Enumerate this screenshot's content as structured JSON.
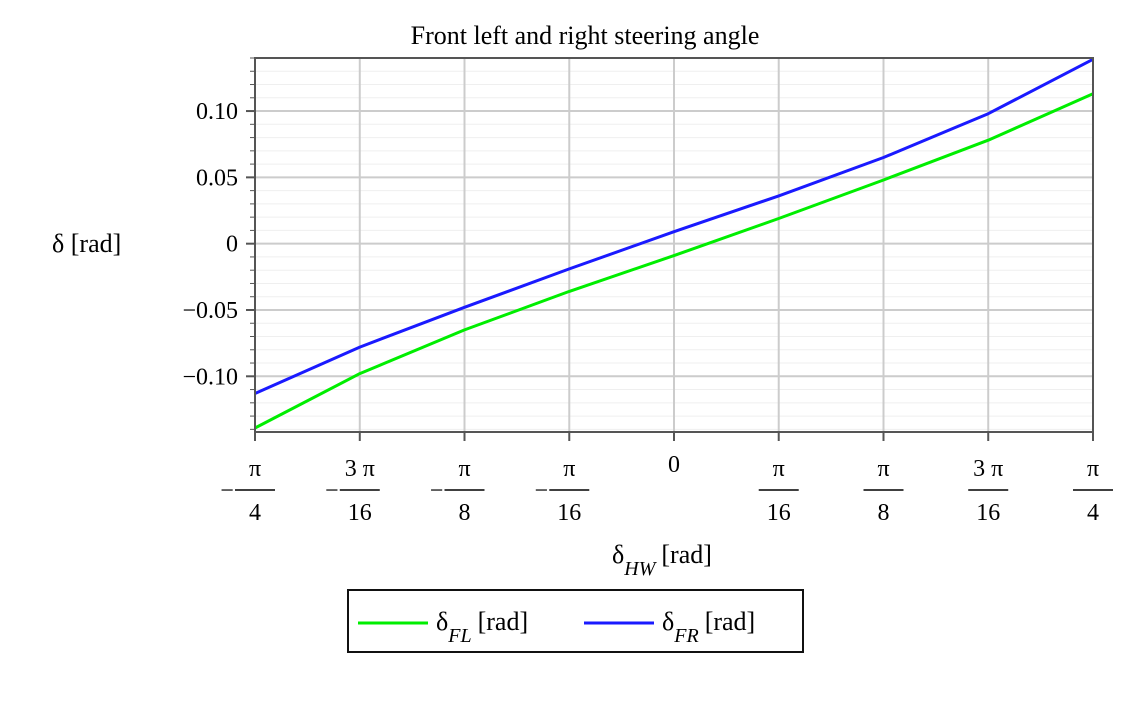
{
  "chart_data": {
    "type": "line",
    "title": "Front left and right steering angle",
    "xlabel": {
      "symbol": "δ",
      "sub": "HW",
      "unit": "[rad]"
    },
    "ylabel": "δ [rad]",
    "xlim": [
      -0.7854,
      0.7854
    ],
    "ylim": [
      -0.142,
      0.14
    ],
    "grid": true,
    "legend_position": "bottom",
    "y_ticks": [
      {
        "value": -0.1,
        "label": "−0.10"
      },
      {
        "value": -0.05,
        "label": "−0.05"
      },
      {
        "value": 0,
        "label": "0"
      },
      {
        "value": 0.05,
        "label": "0.05"
      },
      {
        "value": 0.1,
        "label": "0.10"
      }
    ],
    "x_ticks": [
      {
        "value": -0.7854,
        "sign": "−",
        "num": "π",
        "den": "4"
      },
      {
        "value": -0.589,
        "sign": "−",
        "num": "3 π",
        "den": "16"
      },
      {
        "value": -0.3927,
        "sign": "−",
        "num": "π",
        "den": "8"
      },
      {
        "value": -0.1963,
        "sign": "−",
        "num": "π",
        "den": "16"
      },
      {
        "value": 0,
        "plain": "0"
      },
      {
        "value": 0.1963,
        "sign": "",
        "num": "π",
        "den": "16"
      },
      {
        "value": 0.3927,
        "sign": "",
        "num": "π",
        "den": "8"
      },
      {
        "value": 0.589,
        "sign": "",
        "num": "3 π",
        "den": "16"
      },
      {
        "value": 0.7854,
        "sign": "",
        "num": "π",
        "den": "4"
      }
    ],
    "series": [
      {
        "name": {
          "symbol": "δ",
          "sub": "FL",
          "unit": "[rad]"
        },
        "color": "#00ee00",
        "x": [
          -0.7854,
          -0.589,
          -0.3927,
          -0.1963,
          0,
          0.1963,
          0.3927,
          0.589,
          0.7854
        ],
        "y": [
          -0.139,
          -0.098,
          -0.065,
          -0.036,
          -0.009,
          0.019,
          0.048,
          0.078,
          0.113
        ]
      },
      {
        "name": {
          "symbol": "δ",
          "sub": "FR",
          "unit": "[rad]"
        },
        "color": "#1a1aff",
        "x": [
          -0.7854,
          -0.589,
          -0.3927,
          -0.1963,
          0,
          0.1963,
          0.3927,
          0.589,
          0.7854
        ],
        "y": [
          -0.113,
          -0.078,
          -0.048,
          -0.019,
          0.009,
          0.036,
          0.065,
          0.098,
          0.139
        ]
      }
    ]
  }
}
